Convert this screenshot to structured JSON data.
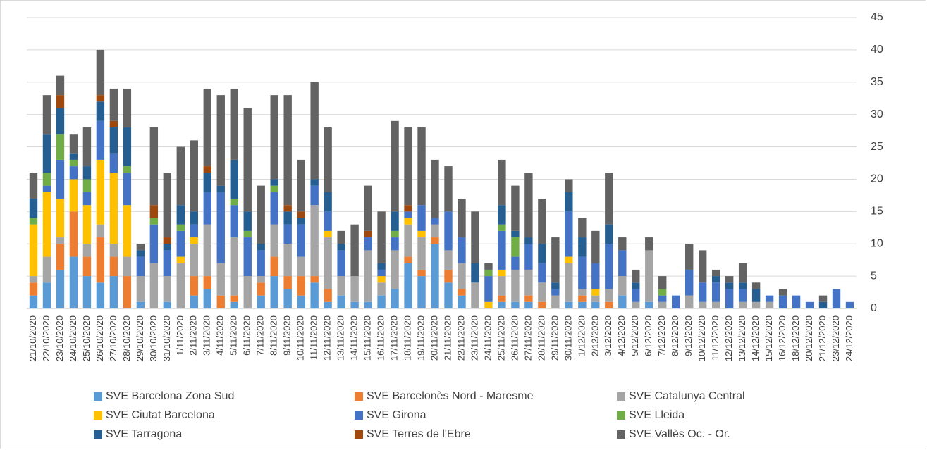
{
  "chart_data": {
    "type": "stacked_bar",
    "categories": [
      "21/10/2020",
      "22/10/2020",
      "23/10/2020",
      "24/10/2020",
      "25/10/2020",
      "26/10/2020",
      "27/10/2020",
      "28/10/2020",
      "29/10/2020",
      "30/10/2020",
      "31/10/2020",
      "1/11/2020",
      "2/11/2020",
      "3/11/2020",
      "4/11/2020",
      "5/11/2020",
      "6/11/2020",
      "7/11/2020",
      "8/11/2020",
      "9/11/2020",
      "10/11/2020",
      "11/11/2020",
      "12/11/2020",
      "13/11/2020",
      "14/11/2020",
      "15/11/2020",
      "16/11/2020",
      "17/11/2020",
      "18/11/2020",
      "19/11/2020",
      "20/11/2020",
      "21/11/2020",
      "22/11/2020",
      "23/11/2020",
      "24/11/2020",
      "25/11/2020",
      "26/11/2020",
      "27/11/2020",
      "28/11/2020",
      "29/11/2020",
      "30/11/2020",
      "1/12/2020",
      "2/12/2020",
      "3/12/2020",
      "4/12/2020",
      "5/12/2020",
      "6/12/2020",
      "7/12/2020",
      "8/12/2020",
      "9/12/2020",
      "10/12/2020",
      "11/12/2020",
      "12/12/2020",
      "13/12/2020",
      "14/12/2020",
      "15/12/2020",
      "16/12/2020",
      "18/12/2020",
      "20/12/2020",
      "21/12/2020",
      "23/12/2020",
      "24/12/2020"
    ],
    "series": [
      {
        "name": "SVE  Barcelona Zona Sud",
        "color": "#5b9bd5",
        "values": [
          2,
          4,
          6,
          8,
          5,
          4,
          5,
          0,
          1,
          0,
          1,
          0,
          2,
          3,
          0,
          1,
          0,
          2,
          5,
          3,
          2,
          4,
          1,
          2,
          1,
          1,
          2,
          3,
          7,
          5,
          10,
          4,
          2,
          0,
          0,
          1,
          1,
          1,
          0,
          0,
          1,
          1,
          1,
          0,
          2,
          0,
          1,
          0,
          0,
          0,
          0,
          0,
          0,
          0,
          0,
          0,
          0,
          0,
          0,
          0,
          0,
          0
        ]
      },
      {
        "name": "SVE Barcelonès Nord - Maresme",
        "color": "#ed7d31",
        "values": [
          2,
          0,
          4,
          7,
          3,
          7,
          3,
          5,
          0,
          0,
          0,
          0,
          3,
          2,
          2,
          1,
          0,
          2,
          3,
          2,
          3,
          1,
          2,
          0,
          0,
          0,
          0,
          0,
          1,
          1,
          1,
          2,
          1,
          0,
          0,
          1,
          0,
          1,
          1,
          0,
          0,
          1,
          0,
          1,
          0,
          0,
          0,
          0,
          0,
          0,
          0,
          0,
          0,
          0,
          0,
          0,
          0,
          0,
          0,
          0,
          0,
          0
        ]
      },
      {
        "name": "SVE Catalunya Central",
        "color": "#a5a5a5",
        "values": [
          1,
          4,
          1,
          0,
          2,
          2,
          2,
          3,
          4,
          7,
          4,
          7,
          5,
          8,
          5,
          9,
          5,
          1,
          5,
          5,
          3,
          11,
          8,
          3,
          4,
          8,
          2,
          6,
          5,
          5,
          2,
          3,
          4,
          4,
          0,
          3,
          5,
          4,
          3,
          2,
          6,
          1,
          1,
          2,
          3,
          1,
          8,
          1,
          0,
          2,
          1,
          1,
          0,
          1,
          1,
          1,
          0,
          0,
          0,
          0,
          0,
          0
        ]
      },
      {
        "name": "SVE Ciutat Barcelona",
        "color": "#ffc000",
        "values": [
          8,
          10,
          6,
          5,
          6,
          10,
          11,
          8,
          0,
          0,
          0,
          1,
          1,
          0,
          0,
          0,
          0,
          0,
          0,
          0,
          0,
          0,
          1,
          0,
          0,
          0,
          1,
          0,
          1,
          1,
          0,
          0,
          0,
          0,
          1,
          1,
          0,
          0,
          0,
          0,
          1,
          0,
          1,
          0,
          0,
          0,
          0,
          0,
          0,
          0,
          0,
          0,
          0,
          0,
          0,
          0,
          0,
          0,
          0,
          0,
          0,
          0
        ]
      },
      {
        "name": "SVE Girona",
        "color": "#4472c4",
        "values": [
          0,
          1,
          6,
          2,
          2,
          6,
          3,
          5,
          3,
          6,
          4,
          4,
          2,
          5,
          11,
          5,
          6,
          4,
          5,
          3,
          5,
          3,
          3,
          4,
          0,
          2,
          1,
          2,
          1,
          4,
          1,
          6,
          4,
          0,
          4,
          6,
          2,
          4,
          3,
          1,
          7,
          5,
          4,
          7,
          4,
          2,
          0,
          1,
          2,
          4,
          3,
          3,
          3,
          2,
          0,
          1,
          2,
          2,
          1,
          0,
          3,
          1
        ]
      },
      {
        "name": "SVE Lleida",
        "color": "#70ad47",
        "values": [
          1,
          2,
          4,
          1,
          2,
          0,
          0,
          1,
          0,
          1,
          0,
          1,
          0,
          0,
          0,
          1,
          1,
          0,
          1,
          0,
          0,
          0,
          0,
          0,
          0,
          0,
          0,
          1,
          0,
          0,
          0,
          0,
          0,
          0,
          1,
          1,
          3,
          0,
          0,
          0,
          0,
          0,
          0,
          0,
          0,
          0,
          0,
          1,
          0,
          0,
          0,
          0,
          0,
          0,
          0,
          0,
          0,
          0,
          0,
          0,
          0,
          0
        ]
      },
      {
        "name": "SVE Tarragona",
        "color": "#255e91",
        "values": [
          3,
          6,
          4,
          1,
          2,
          3,
          4,
          6,
          1,
          0,
          1,
          3,
          2,
          3,
          1,
          6,
          3,
          1,
          1,
          2,
          1,
          1,
          3,
          1,
          0,
          0,
          1,
          3,
          0,
          0,
          0,
          0,
          0,
          3,
          0,
          3,
          1,
          1,
          3,
          1,
          3,
          3,
          0,
          3,
          0,
          1,
          0,
          0,
          0,
          0,
          0,
          1,
          1,
          1,
          2,
          0,
          0,
          0,
          0,
          1,
          0,
          0
        ]
      },
      {
        "name": "SVE Terres de l'Ebre",
        "color": "#9e480e",
        "values": [
          0,
          0,
          2,
          0,
          0,
          1,
          1,
          0,
          0,
          2,
          1,
          0,
          0,
          1,
          0,
          0,
          0,
          0,
          0,
          1,
          1,
          0,
          0,
          0,
          0,
          1,
          0,
          0,
          1,
          0,
          0,
          0,
          0,
          0,
          0,
          0,
          0,
          0,
          0,
          0,
          0,
          0,
          0,
          0,
          0,
          0,
          0,
          0,
          0,
          0,
          0,
          0,
          0,
          0,
          0,
          0,
          0,
          0,
          0,
          0,
          0,
          0
        ]
      },
      {
        "name": "SVE Vallès Oc. - Or.",
        "color": "#636363",
        "values": [
          4,
          6,
          3,
          3,
          6,
          7,
          5,
          6,
          1,
          12,
          10,
          9,
          11,
          12,
          14,
          11,
          16,
          9,
          13,
          17,
          8,
          15,
          10,
          2,
          8,
          7,
          8,
          14,
          12,
          12,
          9,
          7,
          6,
          8,
          1,
          7,
          7,
          10,
          7,
          7,
          2,
          3,
          5,
          8,
          2,
          2,
          2,
          2,
          0,
          4,
          5,
          1,
          1,
          3,
          1,
          0,
          1,
          0,
          0,
          1,
          0,
          0
        ]
      }
    ],
    "ylim": [
      0,
      45
    ],
    "yticks": [
      0,
      5,
      10,
      15,
      20,
      25,
      30,
      35,
      40,
      45
    ],
    "grid": true,
    "y_axis_side": "right",
    "legend_position": "bottom"
  }
}
